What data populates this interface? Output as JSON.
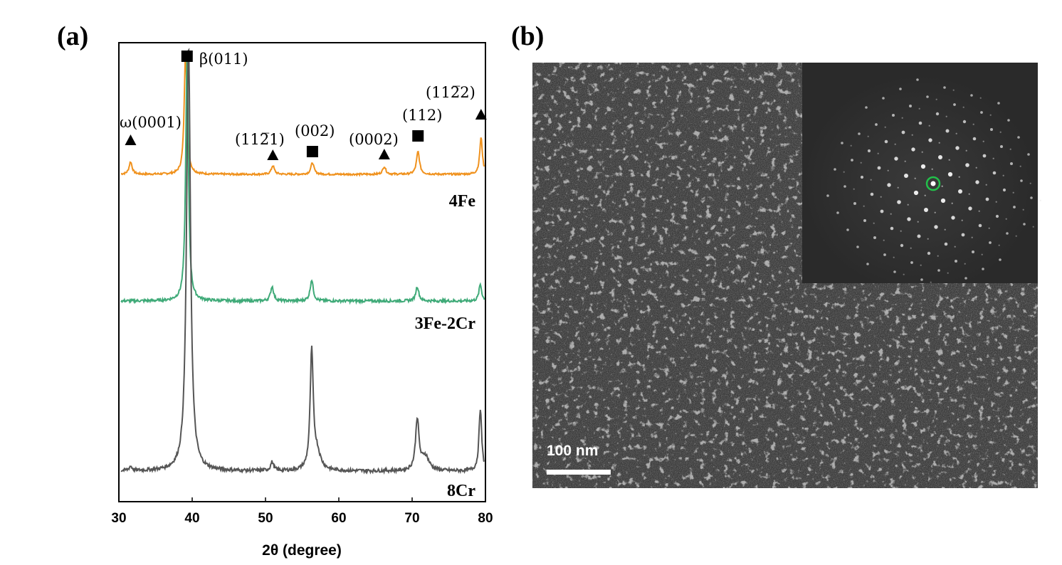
{
  "chart_data": {
    "type": "line",
    "panel_label": "(a)",
    "xlabel": "2θ (degree)",
    "ylabel": "",
    "xlim": [
      30,
      80
    ],
    "xticks": [
      "30",
      "40",
      "50",
      "60",
      "70",
      "80"
    ],
    "xtick_values": [
      30,
      40,
      50,
      60,
      70,
      80
    ],
    "grid": false,
    "series": [
      {
        "name": "4Fe",
        "color": "#f0921e",
        "baseline": 0,
        "peaks": [
          {
            "x": 31.6,
            "h": 0.8,
            "w": 0.25
          },
          {
            "x": 39.1,
            "h": 8.0,
            "w": 0.22
          },
          {
            "x": 51.0,
            "h": 0.55,
            "w": 0.25
          },
          {
            "x": 56.4,
            "h": 0.75,
            "w": 0.25
          },
          {
            "x": 66.2,
            "h": 0.5,
            "w": 0.25
          },
          {
            "x": 70.8,
            "h": 1.45,
            "w": 0.25
          },
          {
            "x": 79.4,
            "h": 2.35,
            "w": 0.22
          }
        ]
      },
      {
        "name": "3Fe-2Cr",
        "color": "#3faa78",
        "baseline": 0,
        "peaks": [
          {
            "x": 39.3,
            "h": 11.0,
            "w": 0.22
          },
          {
            "x": 50.9,
            "h": 0.65,
            "w": 0.25
          },
          {
            "x": 56.3,
            "h": 0.95,
            "w": 0.25
          },
          {
            "x": 70.7,
            "h": 0.65,
            "w": 0.25
          },
          {
            "x": 79.3,
            "h": 0.75,
            "w": 0.22
          }
        ]
      },
      {
        "name": "8Cr",
        "color": "#555555",
        "baseline": 0,
        "peaks": [
          {
            "x": 31.6,
            "h": 0.15,
            "w": 0.25
          },
          {
            "x": 39.5,
            "h": 15.0,
            "w": 0.32
          },
          {
            "x": 50.9,
            "h": 0.3,
            "w": 0.25
          },
          {
            "x": 56.3,
            "h": 4.1,
            "w": 0.25
          },
          {
            "x": 57.0,
            "h": 0.6,
            "w": 0.6
          },
          {
            "x": 70.7,
            "h": 1.8,
            "w": 0.28
          },
          {
            "x": 71.8,
            "h": 0.5,
            "w": 0.6
          },
          {
            "x": 79.3,
            "h": 2.2,
            "w": 0.22
          }
        ]
      }
    ],
    "annotations": [
      {
        "marker": "triangle",
        "x": 31.6,
        "label": "ω(0001)"
      },
      {
        "marker": "square",
        "x": 39.3,
        "label": "β(011)"
      },
      {
        "marker": "triangle",
        "x": 51.0,
        "label": "(112̅1)"
      },
      {
        "marker": "square",
        "x": 56.4,
        "label": "(002)"
      },
      {
        "marker": "triangle",
        "x": 66.2,
        "label": "(0002)"
      },
      {
        "marker": "square",
        "x": 70.8,
        "label": "(112)"
      },
      {
        "marker": "triangle",
        "x": 79.4,
        "label": "(112̅2)"
      }
    ]
  },
  "micrograph": {
    "panel_label": "(b)",
    "scale_bar_text": "100 nm",
    "highlight_color": "#22c04a"
  }
}
